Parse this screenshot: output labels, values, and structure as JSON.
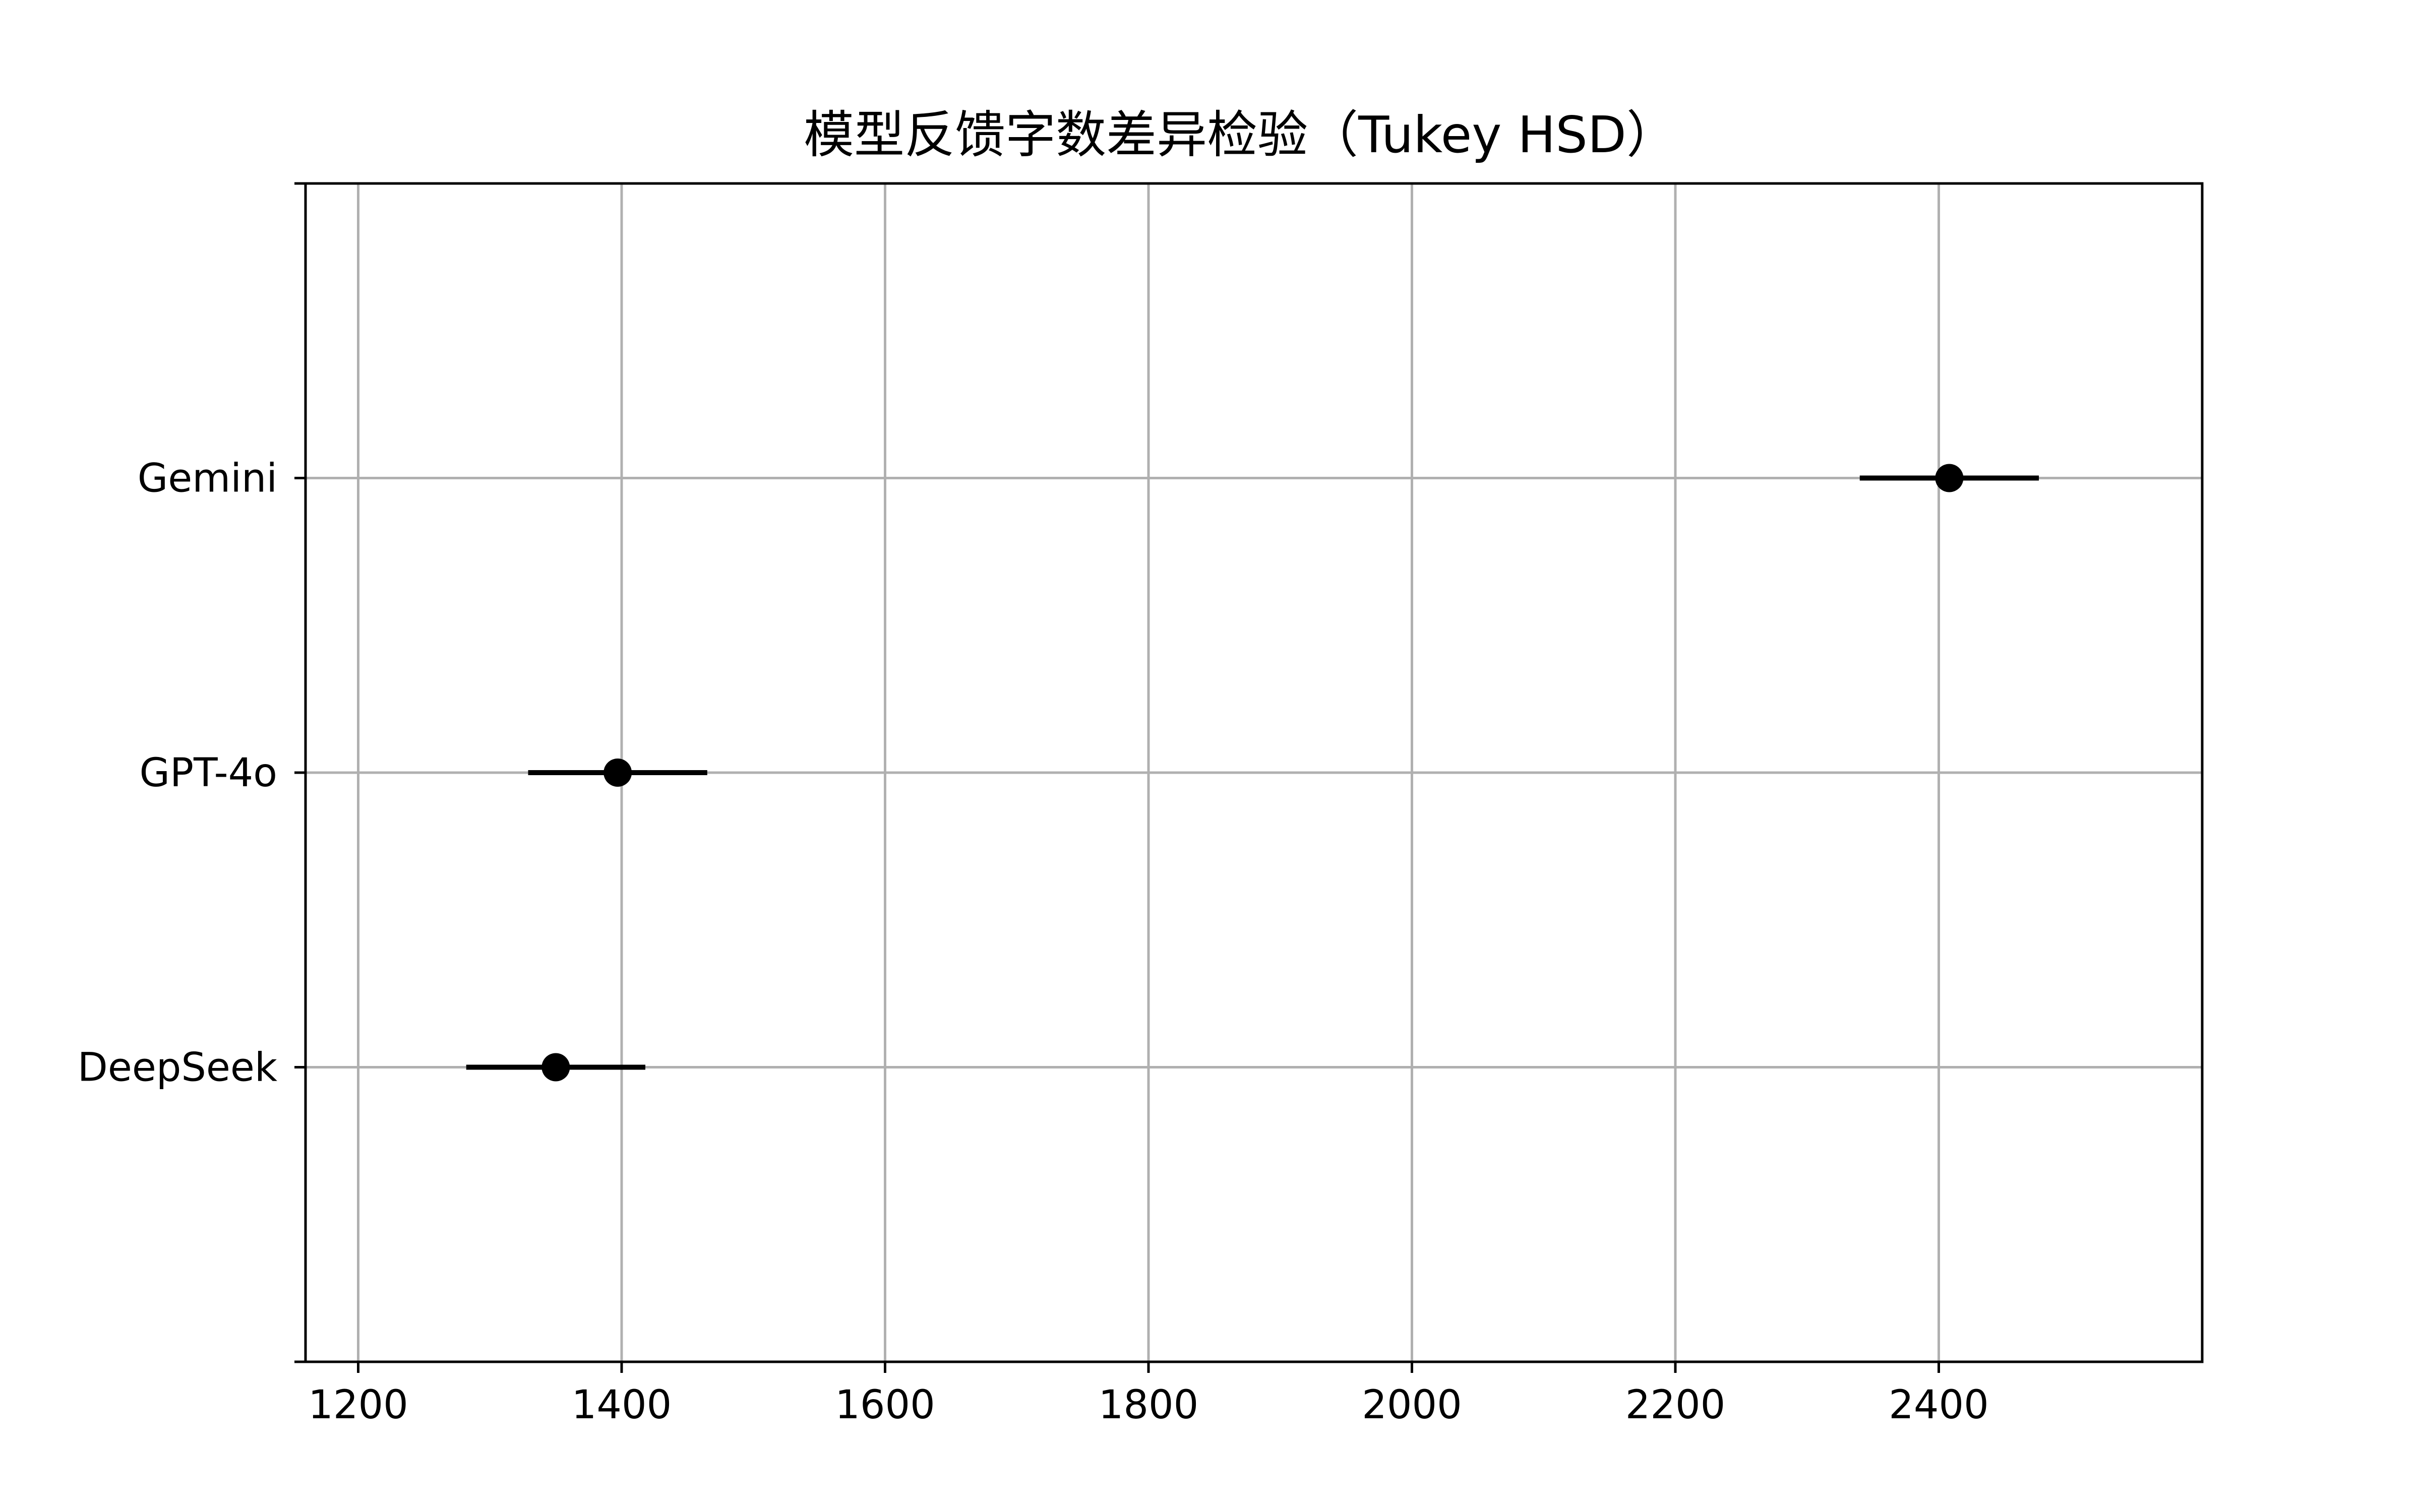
{
  "chart_data": {
    "type": "scatter",
    "title": "模型反馈字数差异检验（Tukey HSD）",
    "xlabel": "",
    "ylabel": "",
    "xlim": [
      1160,
      2600
    ],
    "xticks": [
      1200,
      1400,
      1600,
      1800,
      2000,
      2200,
      2400
    ],
    "xtick_labels": [
      "1200",
      "1400",
      "1600",
      "1800",
      "2000",
      "2200",
      "2400"
    ],
    "categories": [
      "DeepSeek",
      "GPT-4o",
      "Gemini"
    ],
    "points": [
      {
        "category": "DeepSeek",
        "mean": 1350,
        "lower": 1282,
        "upper": 1418
      },
      {
        "category": "GPT-4o",
        "mean": 1397,
        "lower": 1329,
        "upper": 1465
      },
      {
        "category": "Gemini",
        "mean": 2408,
        "lower": 2340,
        "upper": 2476
      }
    ],
    "grid": true,
    "marker_color": "#000000",
    "grid_color": "#b0b0b0"
  }
}
